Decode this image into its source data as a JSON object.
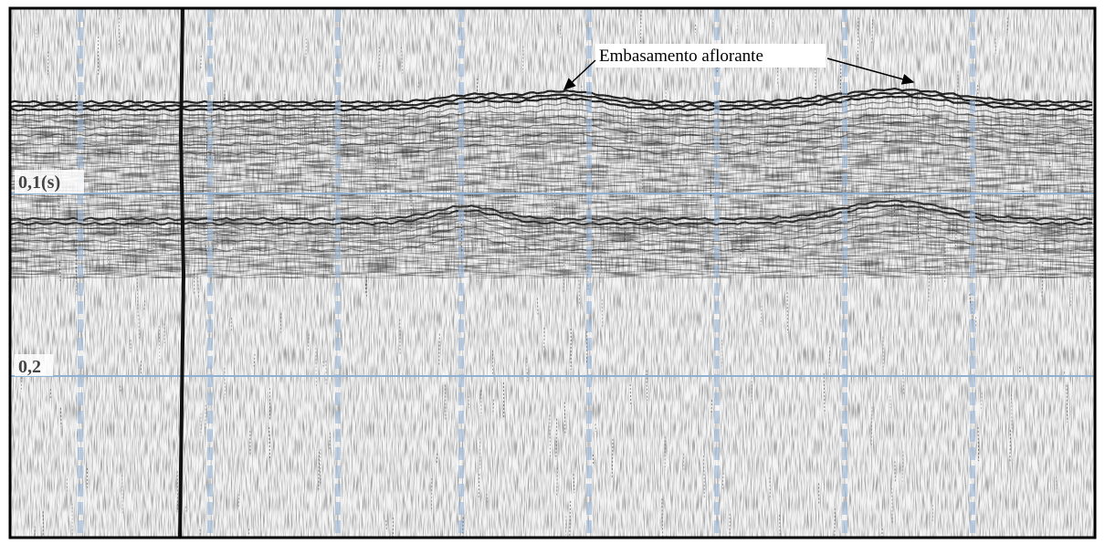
{
  "annotation": "Embasamento aflorante",
  "time_labels": [
    "0,1(s)",
    "0,2"
  ]
}
